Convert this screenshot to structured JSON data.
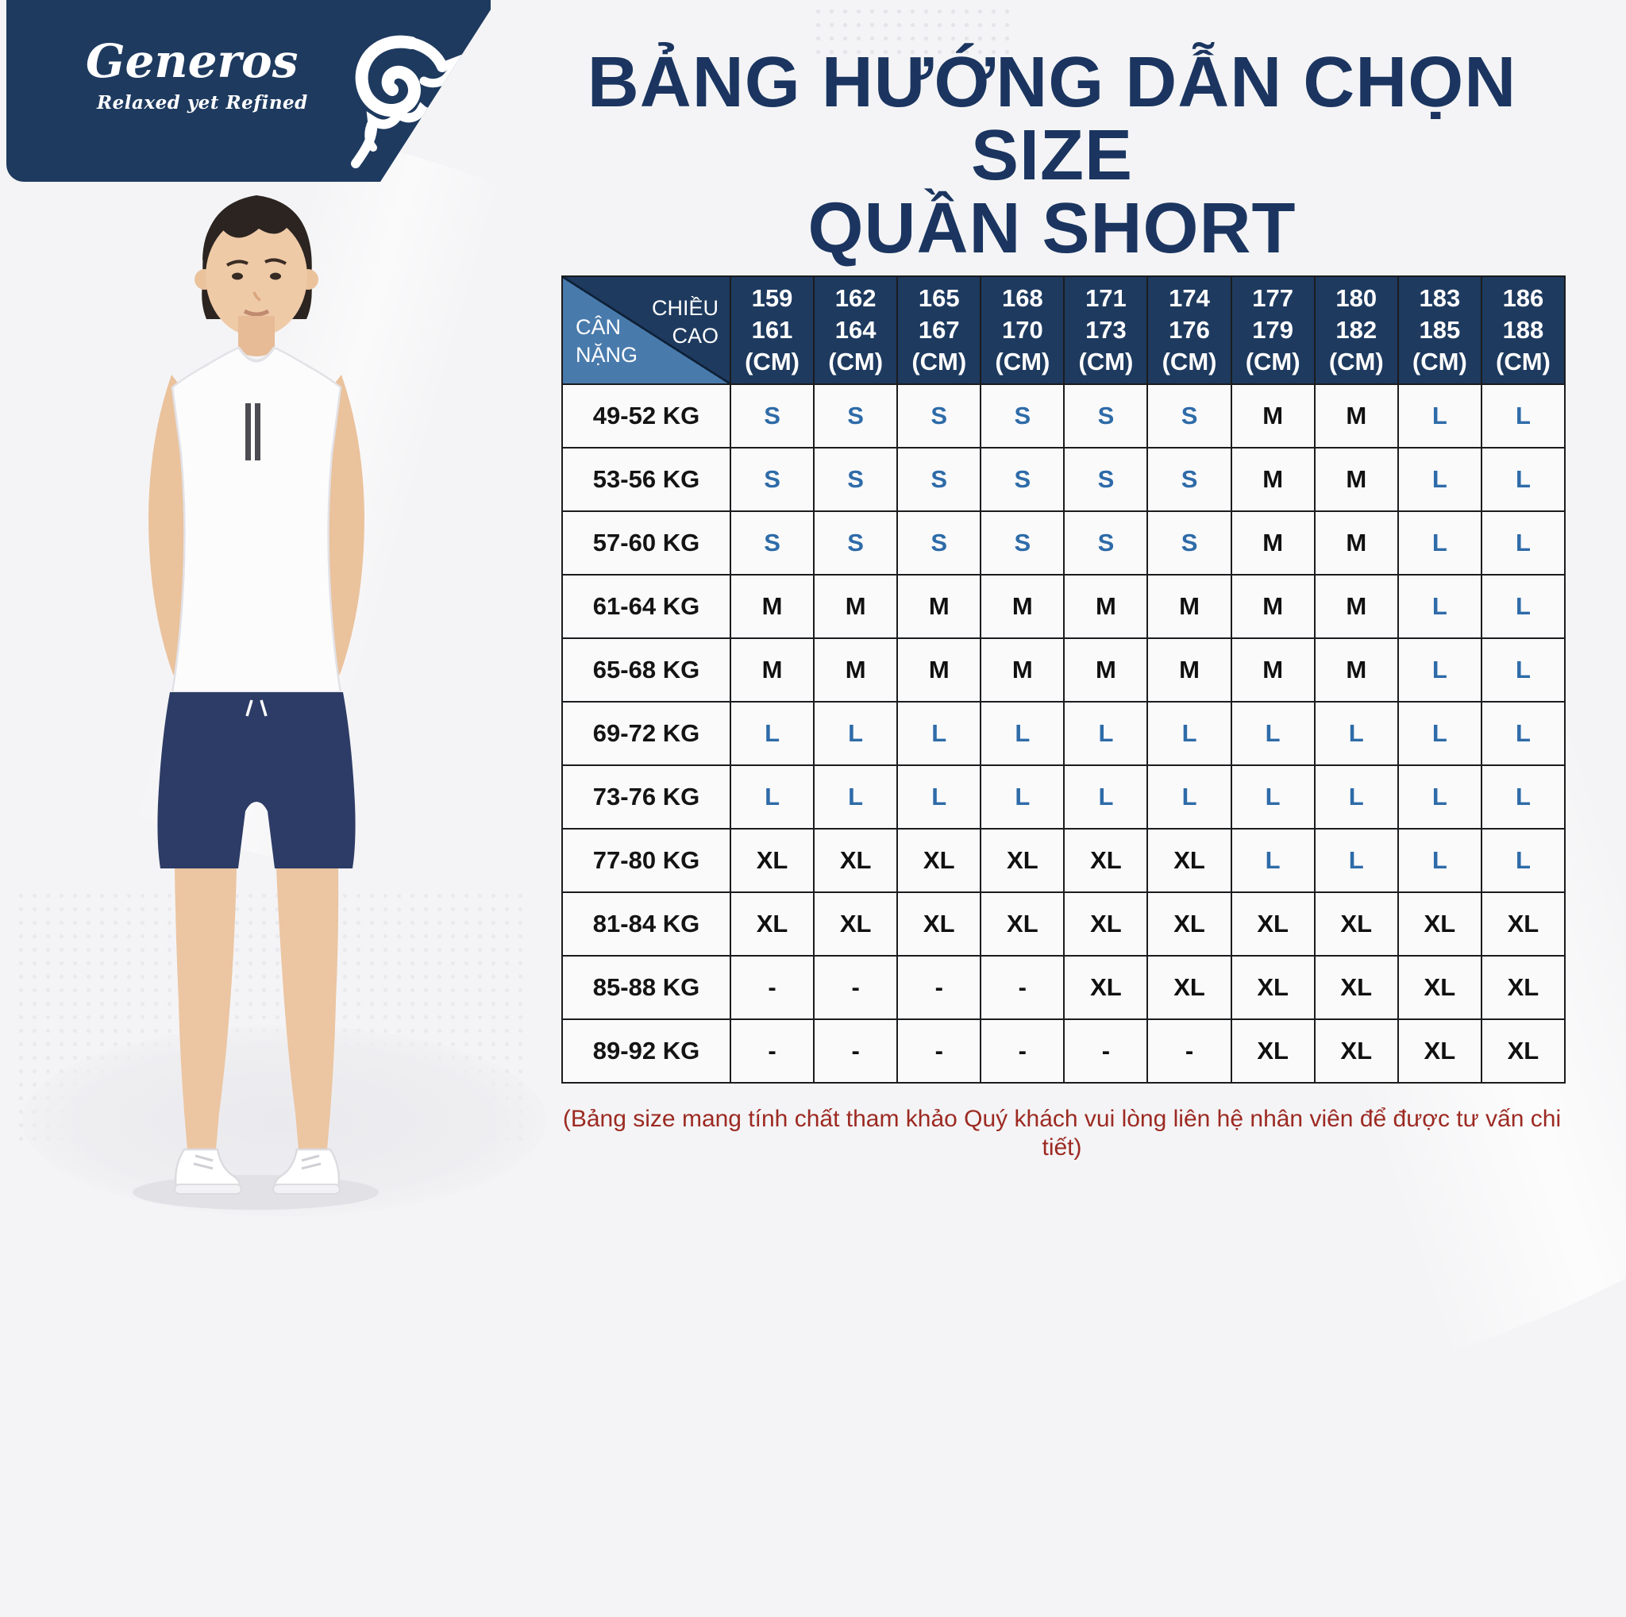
{
  "brand": {
    "name": "Generos",
    "tagline": "Relaxed yet Refined",
    "logo_icon": "ram-icon"
  },
  "title": {
    "line1": "BẢNG HƯỚNG DẪN CHỌN SIZE",
    "line2": "QUẦN SHORT"
  },
  "size_table": {
    "corner_top": "CHIỀU\nCAO",
    "corner_bottom": "CÂN\nNẶNG",
    "unit": "(CM)",
    "height_columns": [
      [
        "159",
        "161"
      ],
      [
        "162",
        "164"
      ],
      [
        "165",
        "167"
      ],
      [
        "168",
        "170"
      ],
      [
        "171",
        "173"
      ],
      [
        "174",
        "176"
      ],
      [
        "177",
        "179"
      ],
      [
        "180",
        "182"
      ],
      [
        "183",
        "185"
      ],
      [
        "186",
        "188"
      ]
    ],
    "rows": [
      {
        "weight": "49-52 KG",
        "sizes": [
          "S",
          "S",
          "S",
          "S",
          "S",
          "S",
          "M",
          "M",
          "L",
          "L"
        ]
      },
      {
        "weight": "53-56 KG",
        "sizes": [
          "S",
          "S",
          "S",
          "S",
          "S",
          "S",
          "M",
          "M",
          "L",
          "L"
        ]
      },
      {
        "weight": "57-60 KG",
        "sizes": [
          "S",
          "S",
          "S",
          "S",
          "S",
          "S",
          "M",
          "M",
          "L",
          "L"
        ]
      },
      {
        "weight": "61-64 KG",
        "sizes": [
          "M",
          "M",
          "M",
          "M",
          "M",
          "M",
          "M",
          "M",
          "L",
          "L"
        ]
      },
      {
        "weight": "65-68 KG",
        "sizes": [
          "M",
          "M",
          "M",
          "M",
          "M",
          "M",
          "M",
          "M",
          "L",
          "L"
        ]
      },
      {
        "weight": "69-72 KG",
        "sizes": [
          "L",
          "L",
          "L",
          "L",
          "L",
          "L",
          "L",
          "L",
          "L",
          "L"
        ]
      },
      {
        "weight": "73-76 KG",
        "sizes": [
          "L",
          "L",
          "L",
          "L",
          "L",
          "L",
          "L",
          "L",
          "L",
          "L"
        ]
      },
      {
        "weight": "77-80 KG",
        "sizes": [
          "XL",
          "XL",
          "XL",
          "XL",
          "XL",
          "XL",
          "L",
          "L",
          "L",
          "L"
        ]
      },
      {
        "weight": "81-84 KG",
        "sizes": [
          "XL",
          "XL",
          "XL",
          "XL",
          "XL",
          "XL",
          "XL",
          "XL",
          "XL",
          "XL"
        ]
      },
      {
        "weight": "85-88 KG",
        "sizes": [
          "-",
          "-",
          "-",
          "-",
          "XL",
          "XL",
          "XL",
          "XL",
          "XL",
          "XL"
        ]
      },
      {
        "weight": "89-92 KG",
        "sizes": [
          "-",
          "-",
          "-",
          "-",
          "-",
          "-",
          "XL",
          "XL",
          "XL",
          "XL"
        ]
      }
    ],
    "blue_sizes": [
      "S",
      "L"
    ]
  },
  "footnote": "(Bảng size mang tính chất tham khảo Quý khách vui lòng liên hệ nhân viên để được tư vấn chi tiết)",
  "colors": {
    "navy": "#1e3a5f",
    "steel_blue": "#497aac",
    "size_blue": "#2e6ba8",
    "size_dark": "#101010",
    "title_navy": "#1b3560",
    "note_red": "#9c2a22",
    "background": "#f4f4f6",
    "shorts_navy": "#2d3c66"
  }
}
